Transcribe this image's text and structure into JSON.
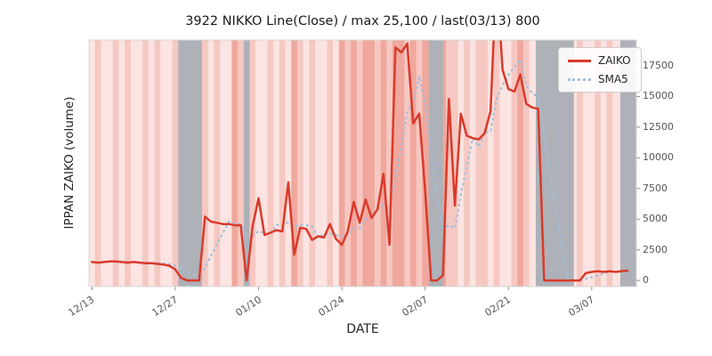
{
  "title": "3922 NIKKO Line(Close) / max 25,100 / last(03/13) 800",
  "chart_data": {
    "type": "line",
    "title": "3922 NIKKO Line(Close) / max 25,100 / last(03/13) 800",
    "xlabel": "DATE",
    "ylabel": "IPPAN ZAIKO (volume)",
    "x_tick_labels": [
      "12/13",
      "12/27",
      "01/10",
      "01/24",
      "02/07",
      "02/21",
      "03/07"
    ],
    "x_tick_days": [
      0,
      14,
      28,
      42,
      56,
      70,
      84
    ],
    "y_ticks": [
      0,
      2500,
      5000,
      7500,
      10000,
      12500,
      15000,
      17500
    ],
    "y_axis_side": "right",
    "xlim": [
      -0.5,
      91.5
    ],
    "ylim": [
      -500,
      19600
    ],
    "grid": false,
    "legend_position": "upper right",
    "max_value": 25100,
    "last": {
      "date": "03/13",
      "value": 800
    },
    "start_date": "12/13",
    "end_date": "03/13",
    "series": [
      {
        "name": "ZAIKO",
        "color": "#d93a2b",
        "style": "solid",
        "values": [
          1500,
          1450,
          1500,
          1550,
          1550,
          1500,
          1450,
          1500,
          1450,
          1400,
          1400,
          1350,
          1300,
          1200,
          900,
          200,
          0,
          0,
          0,
          5200,
          4800,
          4700,
          4600,
          4600,
          4500,
          4500,
          0,
          4400,
          6700,
          3700,
          3900,
          4100,
          4000,
          8000,
          2100,
          4300,
          4200,
          3300,
          3600,
          3500,
          4600,
          3400,
          2900,
          4000,
          6400,
          4700,
          6600,
          5100,
          5800,
          8700,
          2900,
          19000,
          18600,
          19300,
          12800,
          13600,
          7300,
          0,
          0,
          400,
          14800,
          6100,
          13600,
          11800,
          11600,
          11500,
          12000,
          13800,
          25100,
          17200,
          15600,
          15400,
          16800,
          14400,
          14100,
          14000,
          0,
          0,
          0,
          0,
          0,
          0,
          0,
          600,
          700,
          750,
          700,
          750,
          700,
          750,
          800
        ]
      },
      {
        "name": "SMA5",
        "color": "#a4bedd",
        "style": "dotted",
        "derived": "sma(5) of ZAIKO"
      }
    ],
    "background": {
      "palette": [
        "#fdf0ee",
        "#fbe4e1",
        "#f6c8c2",
        "#f0a79d"
      ],
      "day_shades": "1211212112121121121212113212112121321211213232332323323233232212122121123211212111211212112",
      "gray_color": "#aeb1b7",
      "gray_bands": [
        [
          14.5,
          18.5
        ],
        [
          25.5,
          26.5
        ],
        [
          56.6,
          59.0
        ],
        [
          74.6,
          81.0
        ],
        [
          88.8,
          91.5
        ]
      ]
    }
  }
}
